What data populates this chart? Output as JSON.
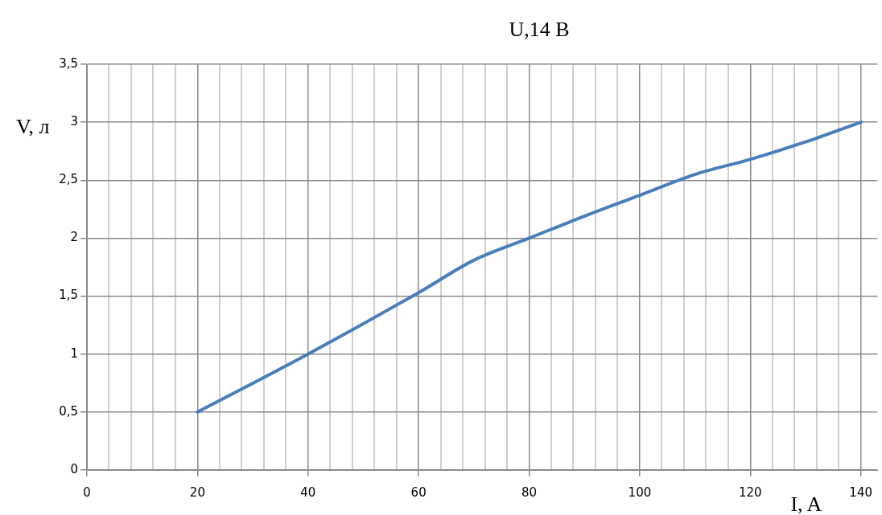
{
  "chart_data": {
    "type": "line",
    "title": "U,14 В",
    "xlabel": "I, A",
    "ylabel": "V, л",
    "x": [
      20,
      40,
      60,
      70,
      80,
      90,
      100,
      110,
      120,
      130,
      140
    ],
    "series": [
      {
        "color": "#4a7ebb",
        "values": [
          0.5,
          1,
          1.53,
          1.81,
          2,
          2.19,
          2.37,
          2.55,
          2.68,
          2.83,
          3
        ]
      }
    ],
    "xlim": [
      0,
      143
    ],
    "xticks": [
      0,
      {
        "value": 4,
        "label": null
      },
      {
        "value": 8,
        "label": null
      },
      {
        "value": 12,
        "label": null
      },
      {
        "value": 16,
        "label": null
      },
      20,
      {
        "value": 24,
        "label": null
      },
      {
        "value": 28,
        "label": null
      },
      {
        "value": 32,
        "label": null
      },
      {
        "value": 36,
        "label": null
      },
      40,
      {
        "value": 44,
        "label": null
      },
      {
        "value": 48,
        "label": null
      },
      {
        "value": 52,
        "label": null
      },
      {
        "value": 56,
        "label": null
      },
      60,
      {
        "value": 64,
        "label": null
      },
      {
        "value": 68,
        "label": null
      },
      {
        "value": 72,
        "label": null
      },
      {
        "value": 76,
        "label": null
      },
      80,
      {
        "value": 84,
        "label": null
      },
      {
        "value": 88,
        "label": null
      },
      {
        "value": 92,
        "label": null
      },
      {
        "value": 96,
        "label": null
      },
      100,
      {
        "value": 104,
        "label": null
      },
      {
        "value": 108,
        "label": null
      },
      {
        "value": 112,
        "label": null
      },
      {
        "value": 116,
        "label": null
      },
      120,
      {
        "value": 124,
        "label": null
      },
      {
        "value": 128,
        "label": null
      },
      {
        "value": 132,
        "label": null
      },
      {
        "value": 136,
        "label": null
      },
      140
    ],
    "ylim": [
      0,
      3.5
    ],
    "yticks": [
      0,
      {
        "value": 0.5,
        "label": "0,5"
      },
      1,
      {
        "value": 1.5,
        "label": "1,5"
      },
      2,
      {
        "value": 2.5,
        "label": "2,5"
      },
      3,
      {
        "value": 3.5,
        "label": "3,5"
      }
    ],
    "grid": true,
    "marker": "none",
    "line_style": "solid"
  }
}
